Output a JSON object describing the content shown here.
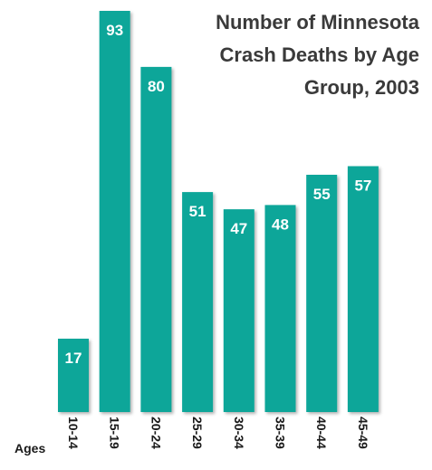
{
  "chart_data": {
    "type": "bar",
    "title_lines": [
      "Number of Minnesota",
      "Crash Deaths by Age",
      "Group, 2003"
    ],
    "xlabel": "Ages",
    "ylabel": "",
    "categories": [
      "10-14",
      "15-19",
      "20-24",
      "25-29",
      "30-34",
      "35-39",
      "40-44",
      "45-49"
    ],
    "values": [
      17,
      93,
      80,
      51,
      47,
      48,
      55,
      57
    ],
    "ylim": [
      0,
      93
    ],
    "grid": false,
    "legend": "none",
    "bar_color": "#0aa699",
    "label_color": "#ffffff"
  }
}
